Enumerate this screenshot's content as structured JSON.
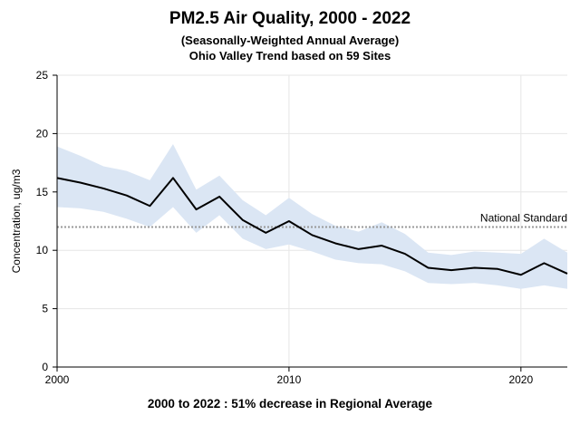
{
  "chart_data": {
    "type": "line",
    "title": "PM2.5 Air Quality, 2000 - 2022",
    "subtitle_1": "(Seasonally-Weighted Annual Average)",
    "subtitle_2": "Ohio Valley Trend based on 59 Sites",
    "ylabel": "Concentration, ug/m3",
    "xlabel": "",
    "footer": "2000 to 2022 :  51% decrease in Regional Average",
    "xlim": [
      2000,
      2022
    ],
    "ylim": [
      0,
      25
    ],
    "x_ticks": [
      2000,
      2010,
      2020
    ],
    "y_ticks": [
      0,
      5,
      10,
      15,
      20,
      25
    ],
    "grid": true,
    "x": [
      2000,
      2001,
      2002,
      2003,
      2004,
      2005,
      2006,
      2007,
      2008,
      2009,
      2010,
      2011,
      2012,
      2013,
      2014,
      2015,
      2016,
      2017,
      2018,
      2019,
      2020,
      2021,
      2022
    ],
    "series": [
      {
        "values": [
          16.2,
          15.8,
          15.3,
          14.7,
          13.8,
          16.2,
          13.5,
          14.6,
          12.6,
          11.5,
          12.5,
          11.3,
          10.6,
          10.1,
          10.4,
          9.7,
          8.5,
          8.3,
          8.5,
          8.4,
          7.9,
          8.9,
          8.0
        ],
        "color": "#000000"
      }
    ],
    "band": {
      "upper": [
        18.9,
        18.1,
        17.2,
        16.8,
        16.0,
        19.1,
        15.2,
        16.4,
        14.3,
        13.0,
        14.5,
        13.1,
        12.1,
        11.6,
        12.4,
        11.4,
        9.8,
        9.6,
        9.9,
        9.8,
        9.7,
        11.0,
        9.8
      ],
      "lower": [
        13.7,
        13.6,
        13.3,
        12.7,
        12.0,
        13.7,
        11.5,
        13.0,
        11.0,
        10.1,
        10.5,
        9.9,
        9.2,
        8.9,
        8.8,
        8.2,
        7.2,
        7.1,
        7.2,
        7.0,
        6.7,
        7.0,
        6.7
      ],
      "color": "#dbe6f4"
    },
    "reference_line": {
      "value": 12,
      "label": "National Standard",
      "color": "#999999"
    }
  }
}
